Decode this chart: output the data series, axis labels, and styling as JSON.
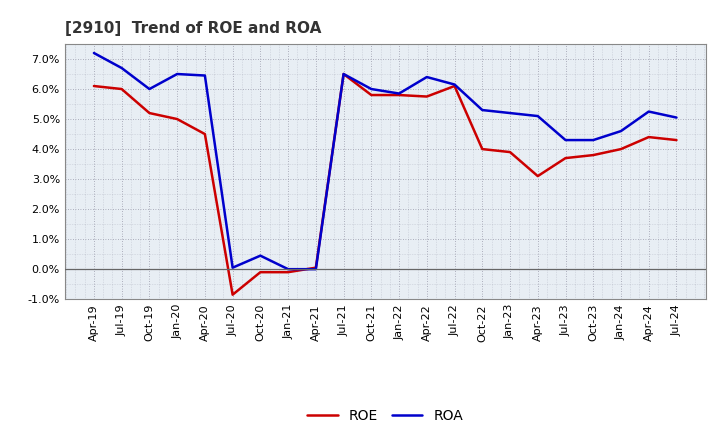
{
  "title": "[2910]  Trend of ROE and ROA",
  "x_labels": [
    "Apr-19",
    "Jul-19",
    "Oct-19",
    "Jan-20",
    "Apr-20",
    "Jul-20",
    "Oct-20",
    "Jan-21",
    "Apr-21",
    "Jul-21",
    "Oct-21",
    "Jan-22",
    "Apr-22",
    "Jul-22",
    "Oct-22",
    "Jan-23",
    "Apr-23",
    "Jul-23",
    "Oct-23",
    "Jan-24",
    "Apr-24",
    "Jul-24"
  ],
  "roe": [
    6.1,
    6.0,
    5.2,
    5.0,
    4.5,
    -0.85,
    -0.1,
    -0.1,
    0.05,
    6.5,
    5.8,
    5.8,
    5.75,
    6.1,
    4.0,
    3.9,
    3.1,
    3.7,
    3.8,
    4.0,
    4.4,
    4.3
  ],
  "roa": [
    7.2,
    6.7,
    6.0,
    6.5,
    6.45,
    0.05,
    0.45,
    0.0,
    0.0,
    6.5,
    6.0,
    5.85,
    6.4,
    6.15,
    5.3,
    5.2,
    5.1,
    4.3,
    4.3,
    4.6,
    5.25,
    5.05
  ],
  "roe_color": "#cc0000",
  "roa_color": "#0000cc",
  "ylim": [
    -1.0,
    7.5
  ],
  "yticks": [
    -1.0,
    0.0,
    1.0,
    2.0,
    3.0,
    4.0,
    5.0,
    6.0,
    7.0
  ],
  "plot_bg_color": "#e8eef4",
  "fig_bg_color": "#ffffff",
  "grid_color": "#9999aa",
  "title_fontsize": 11,
  "legend_fontsize": 10,
  "axis_fontsize": 8,
  "line_width": 1.8
}
